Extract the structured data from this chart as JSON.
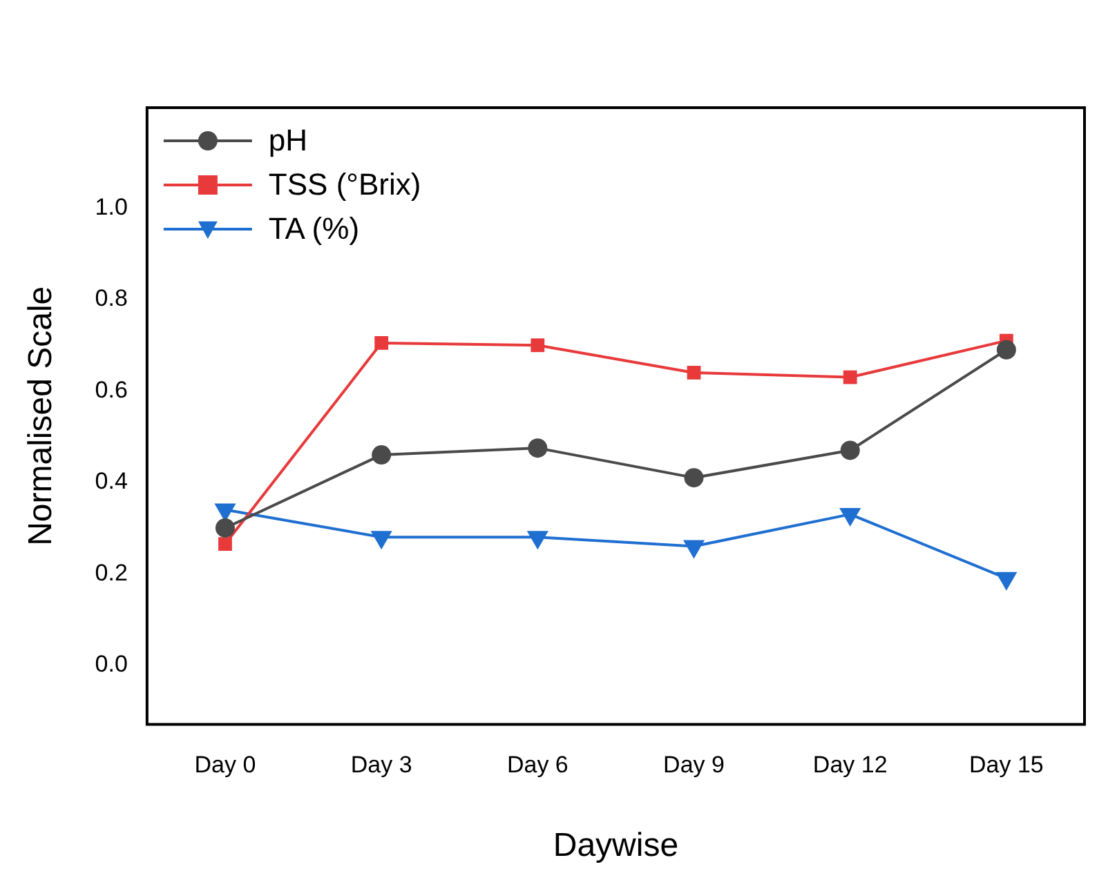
{
  "chart_data": {
    "type": "line",
    "xlabel": "Daywise",
    "ylabel": "Normalised Scale",
    "categories": [
      "Day 0",
      "Day 3",
      "Day 6",
      "Day 9",
      "Day 12",
      "Day 15"
    ],
    "series": [
      {
        "name": "pH",
        "color": "#4a4a4a",
        "marker": "circle",
        "values": [
          0.3,
          0.46,
          0.475,
          0.41,
          0.47,
          0.69
        ]
      },
      {
        "name": "TSS (°Brix)",
        "color": "#e8393b",
        "marker": "square",
        "values": [
          0.265,
          0.705,
          0.7,
          0.64,
          0.63,
          0.71
        ]
      },
      {
        "name": "TA (%)",
        "color": "#1f6fd1",
        "marker": "triangle",
        "values": [
          0.34,
          0.28,
          0.28,
          0.26,
          0.33,
          0.19
        ]
      }
    ],
    "ylim": [
      -0.13,
      1.22
    ],
    "yticks": [
      {
        "value": 0,
        "label": "0.0"
      },
      {
        "value": 0.2,
        "label": "0.2"
      },
      {
        "value": 0.4,
        "label": "0.4"
      },
      {
        "value": 0.6,
        "label": "0.6"
      },
      {
        "value": 0.8,
        "label": "0.8"
      },
      {
        "value": 1,
        "label": "1.0"
      }
    ],
    "grid": false,
    "legend": "top left",
    "line_style": "solid"
  }
}
